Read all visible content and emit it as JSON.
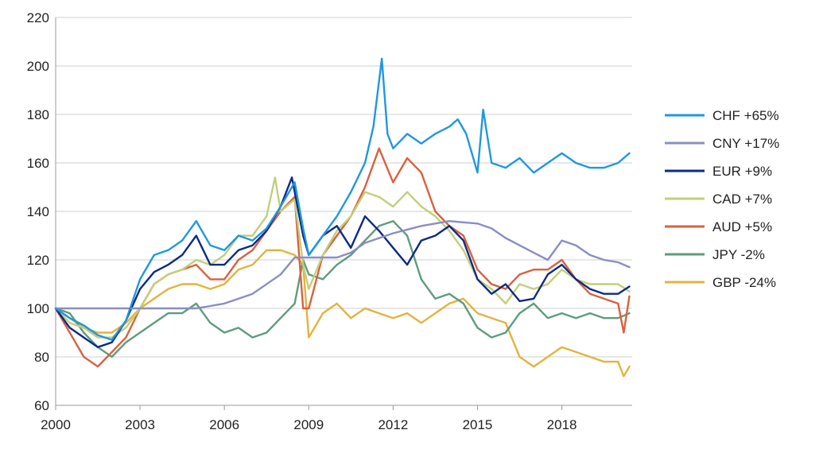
{
  "chart_data": {
    "type": "line",
    "title": "",
    "xlabel": "",
    "ylabel": "",
    "xlim": [
      2000,
      2020.5
    ],
    "ylim": [
      60,
      220
    ],
    "x_ticks": [
      2000,
      2003,
      2006,
      2009,
      2012,
      2015,
      2018
    ],
    "x_tick_labels": [
      "2000",
      "2003",
      "2006",
      "2009",
      "2012",
      "2015",
      "2018"
    ],
    "y_ticks": [
      60,
      80,
      100,
      120,
      140,
      160,
      180,
      200,
      220
    ],
    "y_tick_labels": [
      "60",
      "80",
      "100",
      "120",
      "140",
      "160",
      "180",
      "200",
      "220"
    ],
    "grid": "horizontal",
    "legend_position": "right",
    "series": [
      {
        "name": "CHF +65%",
        "color": "#1f98e0",
        "x": [
          2000,
          2000.5,
          2001,
          2001.5,
          2002,
          2002.5,
          2003,
          2003.5,
          2004,
          2004.5,
          2005,
          2005.5,
          2006,
          2006.5,
          2007,
          2007.5,
          2008,
          2008.5,
          2008.8,
          2009,
          2009.5,
          2010,
          2010.5,
          2011,
          2011.3,
          2011.6,
          2011.8,
          2012,
          2012.5,
          2013,
          2013.5,
          2014,
          2014.3,
          2014.6,
          2015,
          2015.2,
          2015.5,
          2016,
          2016.5,
          2017,
          2017.5,
          2018,
          2018.5,
          2019,
          2019.5,
          2020,
          2020.4
        ],
        "values": [
          100,
          96,
          93,
          89,
          87,
          95,
          112,
          122,
          124,
          128,
          136,
          126,
          124,
          130,
          128,
          133,
          142,
          152,
          133,
          122,
          130,
          138,
          148,
          160,
          175,
          203,
          172,
          166,
          172,
          168,
          172,
          175,
          178,
          172,
          156,
          182,
          160,
          158,
          162,
          156,
          160,
          164,
          160,
          158,
          158,
          160,
          164
        ]
      },
      {
        "name": "CNY +17%",
        "color": "#8a8ec2",
        "x": [
          2000,
          2001,
          2002,
          2003,
          2004,
          2005,
          2005.5,
          2006,
          2007,
          2008,
          2008.5,
          2009,
          2010,
          2010.5,
          2011,
          2012,
          2013,
          2014,
          2015,
          2015.5,
          2016,
          2016.5,
          2017,
          2017.5,
          2018,
          2018.5,
          2019,
          2019.5,
          2020,
          2020.4
        ],
        "values": [
          100,
          100,
          100,
          100,
          100,
          100,
          101,
          102,
          106,
          114,
          121,
          121,
          121,
          123,
          127,
          131,
          134,
          136,
          135,
          133,
          129,
          126,
          123,
          120,
          128,
          126,
          122,
          120,
          119,
          117
        ]
      },
      {
        "name": "EUR +9%",
        "color": "#0d2a85",
        "x": [
          2000,
          2000.5,
          2001,
          2001.5,
          2002,
          2002.5,
          2003,
          2003.5,
          2004,
          2004.5,
          2005,
          2005.5,
          2006,
          2006.5,
          2007,
          2007.5,
          2008,
          2008.4,
          2008.8,
          2009,
          2009.5,
          2010,
          2010.5,
          2011,
          2011.5,
          2012,
          2012.5,
          2013,
          2013.5,
          2014,
          2014.5,
          2015,
          2015.5,
          2016,
          2016.5,
          2017,
          2017.5,
          2018,
          2018.5,
          2019,
          2019.5,
          2020,
          2020.4
        ],
        "values": [
          100,
          92,
          88,
          84,
          86,
          95,
          108,
          115,
          118,
          122,
          130,
          118,
          118,
          124,
          126,
          132,
          142,
          154,
          130,
          122,
          130,
          134,
          125,
          138,
          132,
          125,
          118,
          128,
          130,
          134,
          128,
          112,
          106,
          110,
          103,
          104,
          114,
          118,
          112,
          108,
          106,
          106,
          109
        ]
      },
      {
        "name": "CAD +7%",
        "color": "#c2cf7a",
        "x": [
          2000,
          2000.5,
          2001,
          2001.5,
          2002,
          2002.5,
          2003,
          2003.5,
          2004,
          2004.5,
          2005,
          2005.5,
          2006,
          2006.5,
          2007,
          2007.5,
          2007.8,
          2008,
          2008.5,
          2008.8,
          2009,
          2009.5,
          2010,
          2010.5,
          2011,
          2011.5,
          2012,
          2012.5,
          2013,
          2013.5,
          2014,
          2014.5,
          2015,
          2015.5,
          2016,
          2016.5,
          2017,
          2017.5,
          2018,
          2018.5,
          2019,
          2019.5,
          2020,
          2020.4
        ],
        "values": [
          100,
          94,
          92,
          88,
          88,
          92,
          100,
          110,
          114,
          116,
          120,
          118,
          122,
          130,
          130,
          138,
          154,
          140,
          145,
          118,
          108,
          122,
          132,
          138,
          148,
          146,
          142,
          148,
          142,
          138,
          132,
          124,
          112,
          108,
          102,
          110,
          108,
          110,
          116,
          112,
          110,
          110,
          110,
          107
        ]
      },
      {
        "name": "AUD +5%",
        "color": "#d9613e",
        "x": [
          2000,
          2000.5,
          2001,
          2001.5,
          2002,
          2002.5,
          2003,
          2003.5,
          2004,
          2004.5,
          2005,
          2005.5,
          2006,
          2006.5,
          2007,
          2007.5,
          2008,
          2008.5,
          2008.8,
          2009,
          2009.5,
          2010,
          2010.5,
          2011,
          2011.5,
          2012,
          2012.5,
          2013,
          2013.5,
          2014,
          2014.5,
          2015,
          2015.5,
          2016,
          2016.5,
          2017,
          2017.5,
          2018,
          2018.5,
          2019,
          2019.5,
          2020,
          2020.2,
          2020.4
        ],
        "values": [
          100,
          90,
          80,
          76,
          82,
          88,
          100,
          110,
          114,
          116,
          118,
          112,
          112,
          120,
          124,
          132,
          140,
          146,
          100,
          100,
          122,
          130,
          138,
          150,
          166,
          152,
          162,
          156,
          140,
          134,
          130,
          116,
          110,
          108,
          114,
          116,
          116,
          120,
          112,
          106,
          104,
          102,
          90,
          105
        ]
      },
      {
        "name": "JPY -2%",
        "color": "#5e9c7e",
        "x": [
          2000,
          2000.5,
          2001,
          2001.5,
          2002,
          2002.5,
          2003,
          2003.5,
          2004,
          2004.5,
          2005,
          2005.5,
          2006,
          2006.5,
          2007,
          2007.5,
          2008,
          2008.5,
          2008.8,
          2009,
          2009.5,
          2010,
          2010.5,
          2011,
          2011.5,
          2012,
          2012.5,
          2013,
          2013.5,
          2014,
          2014.5,
          2015,
          2015.5,
          2016,
          2016.5,
          2017,
          2017.5,
          2018,
          2018.5,
          2019,
          2019.5,
          2020,
          2020.4
        ],
        "values": [
          100,
          98,
          90,
          84,
          80,
          86,
          90,
          94,
          98,
          98,
          102,
          94,
          90,
          92,
          88,
          90,
          96,
          102,
          120,
          114,
          112,
          118,
          122,
          128,
          134,
          136,
          130,
          112,
          104,
          106,
          102,
          92,
          88,
          90,
          98,
          102,
          96,
          98,
          96,
          98,
          96,
          96,
          98
        ]
      },
      {
        "name": "GBP -24%",
        "color": "#e3b33e",
        "x": [
          2000,
          2000.5,
          2001,
          2001.5,
          2002,
          2002.5,
          2003,
          2003.5,
          2004,
          2004.5,
          2005,
          2005.5,
          2006,
          2006.5,
          2007,
          2007.5,
          2008,
          2008.5,
          2008.8,
          2009,
          2009.5,
          2010,
          2010.5,
          2011,
          2011.5,
          2012,
          2012.5,
          2013,
          2013.5,
          2014,
          2014.5,
          2015,
          2015.5,
          2016,
          2016.5,
          2017,
          2017.5,
          2018,
          2018.5,
          2019,
          2019.5,
          2020,
          2020.2,
          2020.4
        ],
        "values": [
          100,
          96,
          92,
          90,
          90,
          94,
          100,
          104,
          108,
          110,
          110,
          108,
          110,
          116,
          118,
          124,
          124,
          122,
          118,
          88,
          98,
          102,
          96,
          100,
          98,
          96,
          98,
          94,
          98,
          102,
          104,
          98,
          96,
          94,
          80,
          76,
          80,
          84,
          82,
          80,
          78,
          78,
          72,
          76
        ]
      }
    ]
  }
}
